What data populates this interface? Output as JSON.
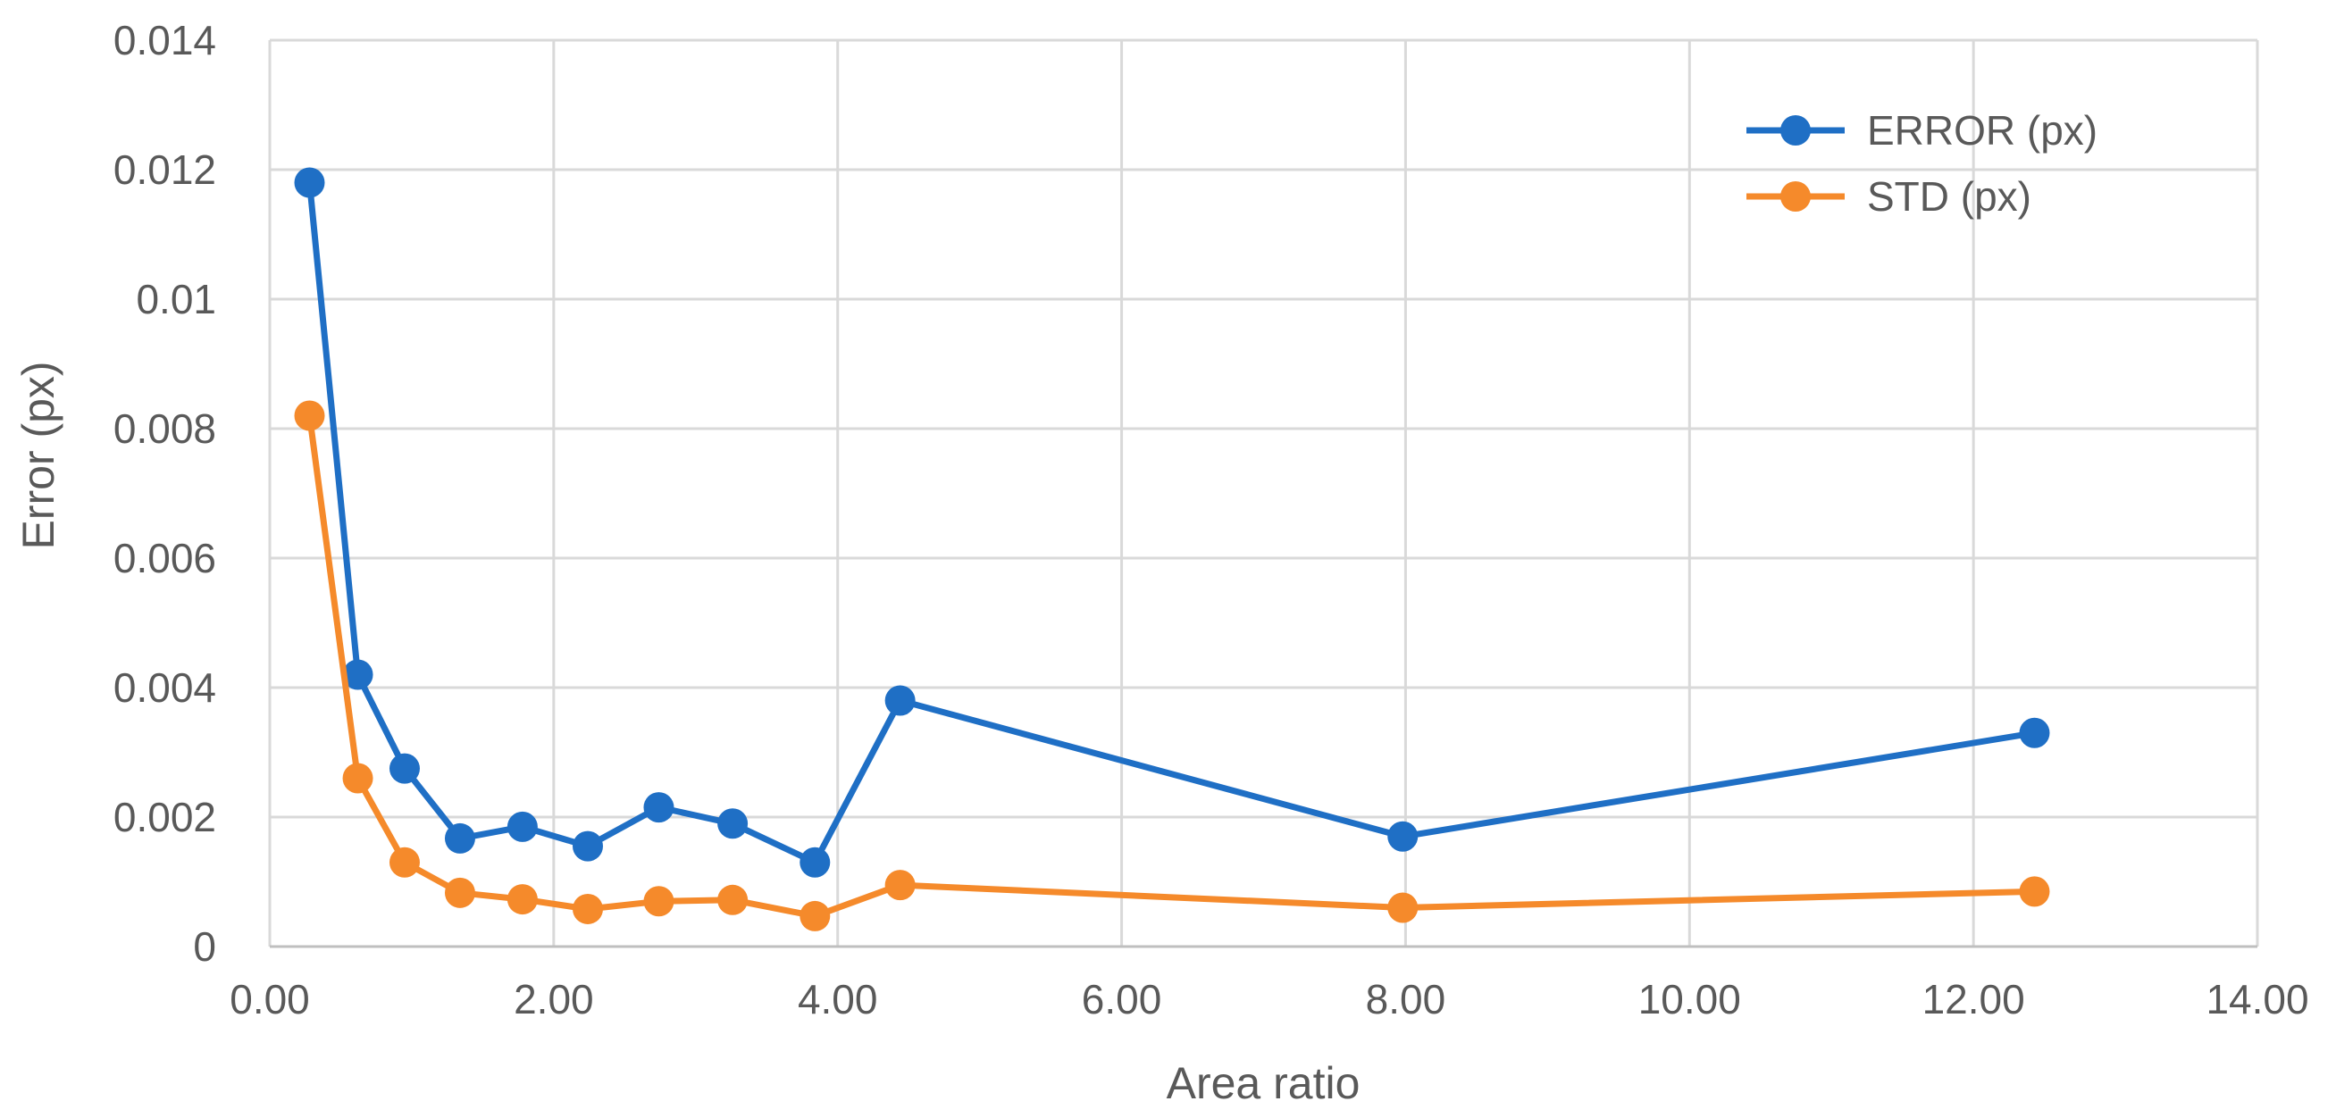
{
  "chart_data": {
    "type": "line",
    "title": "",
    "xlabel": "Area ratio",
    "ylabel": "Error (px)",
    "xlim": [
      0,
      14
    ],
    "ylim": [
      0,
      0.014
    ],
    "x_ticks": [
      "0.00",
      "2.00",
      "4.00",
      "6.00",
      "8.00",
      "10.00",
      "12.00",
      "14.00"
    ],
    "y_ticks": [
      "0",
      "0.002",
      "0.004",
      "0.006",
      "0.008",
      "0.01",
      "0.012",
      "0.014"
    ],
    "grid": true,
    "legend_position": "top-right",
    "series": [
      {
        "name": "ERROR (px)",
        "color": "#1f6fc5",
        "x": [
          0.28,
          0.62,
          0.95,
          1.34,
          1.78,
          2.24,
          2.74,
          3.26,
          3.84,
          4.44,
          7.98,
          12.43
        ],
        "y": [
          0.0118,
          0.0042,
          0.00275,
          0.00167,
          0.00185,
          0.00155,
          0.00215,
          0.0019,
          0.0013,
          0.0038,
          0.0017,
          0.0033
        ]
      },
      {
        "name": "STD (px)",
        "color": "#f58a2b",
        "x": [
          0.28,
          0.62,
          0.95,
          1.34,
          1.78,
          2.24,
          2.74,
          3.26,
          3.84,
          4.44,
          7.98,
          12.43
        ],
        "y": [
          0.0082,
          0.0026,
          0.0013,
          0.00083,
          0.00073,
          0.00058,
          0.0007,
          0.00072,
          0.00047,
          0.00095,
          0.0006,
          0.00085
        ]
      }
    ]
  }
}
